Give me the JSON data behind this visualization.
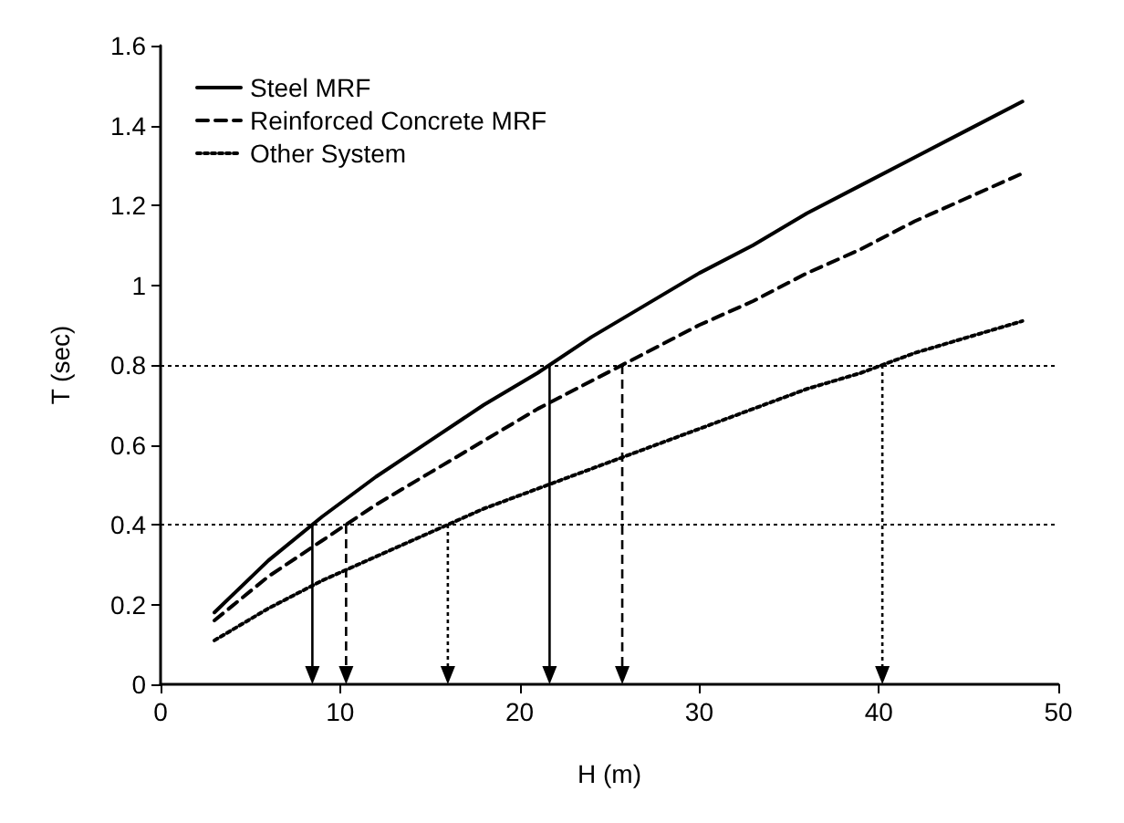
{
  "chart_data": {
    "type": "line",
    "xlabel": "H (m)",
    "ylabel": "T (sec)",
    "xlim": [
      0,
      50
    ],
    "xticks": [
      0,
      10,
      20,
      30,
      40,
      50
    ],
    "ylim": [
      0,
      1.6
    ],
    "yticks": [
      0,
      0.2,
      0.4,
      0.6,
      0.8,
      1,
      1.2,
      1.4,
      1.6
    ],
    "legend": "top left",
    "grid": false,
    "x": [
      3,
      6,
      9,
      12,
      15,
      18,
      21,
      24,
      27,
      30,
      33,
      36,
      39,
      42,
      45,
      48
    ],
    "series": [
      {
        "name": "Steel MRF",
        "color": "#000000",
        "line_style": "solid",
        "values": [
          0.18,
          0.31,
          0.42,
          0.52,
          0.61,
          0.7,
          0.78,
          0.87,
          0.95,
          1.03,
          1.1,
          1.18,
          1.25,
          1.32,
          1.39,
          1.46
        ]
      },
      {
        "name": "Reinforced Concrete MRF",
        "color": "#000000",
        "line_style": "dashed",
        "values": [
          0.16,
          0.27,
          0.36,
          0.45,
          0.53,
          0.61,
          0.69,
          0.76,
          0.83,
          0.9,
          0.96,
          1.03,
          1.09,
          1.16,
          1.22,
          1.28
        ]
      },
      {
        "name": "Other System",
        "color": "#000000",
        "line_style": "dotted",
        "values": [
          0.11,
          0.19,
          0.26,
          0.32,
          0.38,
          0.44,
          0.49,
          0.54,
          0.59,
          0.64,
          0.69,
          0.74,
          0.78,
          0.83,
          0.87,
          0.91
        ]
      }
    ],
    "ref_lines": [
      {
        "axis": "y",
        "value": 0.4,
        "color": "#000000",
        "line_style": "dotted"
      },
      {
        "axis": "y",
        "value": 0.8,
        "color": "#000000",
        "line_style": "dotted"
      }
    ]
  }
}
